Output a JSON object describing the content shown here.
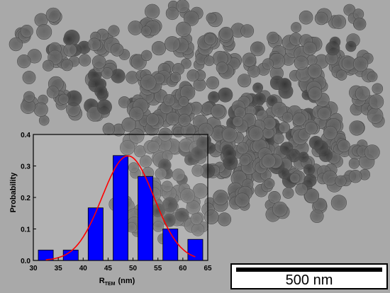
{
  "image": {
    "type": "TEM micrograph of nanoparticles with size distribution inset",
    "background_color": "#a8a8a8"
  },
  "scale_bar": {
    "label": "500 nm"
  },
  "chart_data": {
    "type": "bar",
    "title": "",
    "xlabel": "R",
    "xlabel_subscript": "TEM",
    "xlabel_unit": "(nm)",
    "ylabel": "Probability",
    "xlim": [
      30,
      65
    ],
    "ylim": [
      0,
      0.4
    ],
    "xticks": [
      30,
      35,
      40,
      45,
      50,
      55,
      60,
      65
    ],
    "yticks": [
      0.0,
      0.1,
      0.2,
      0.3,
      0.4
    ],
    "bars": [
      {
        "x": 32.5,
        "value": 0.033
      },
      {
        "x": 37.5,
        "value": 0.033
      },
      {
        "x": 42.5,
        "value": 0.167
      },
      {
        "x": 47.5,
        "value": 0.333
      },
      {
        "x": 52.5,
        "value": 0.267
      },
      {
        "x": 57.5,
        "value": 0.1
      },
      {
        "x": 62.5,
        "value": 0.067
      }
    ],
    "bar_width": 3,
    "bar_color": "#0000ff",
    "fit": {
      "type": "gaussian",
      "amplitude": 0.332,
      "mean": 49.0,
      "sigma": 5.2,
      "x_range": [
        32.5,
        62.5
      ],
      "color": "#ff0000"
    }
  }
}
